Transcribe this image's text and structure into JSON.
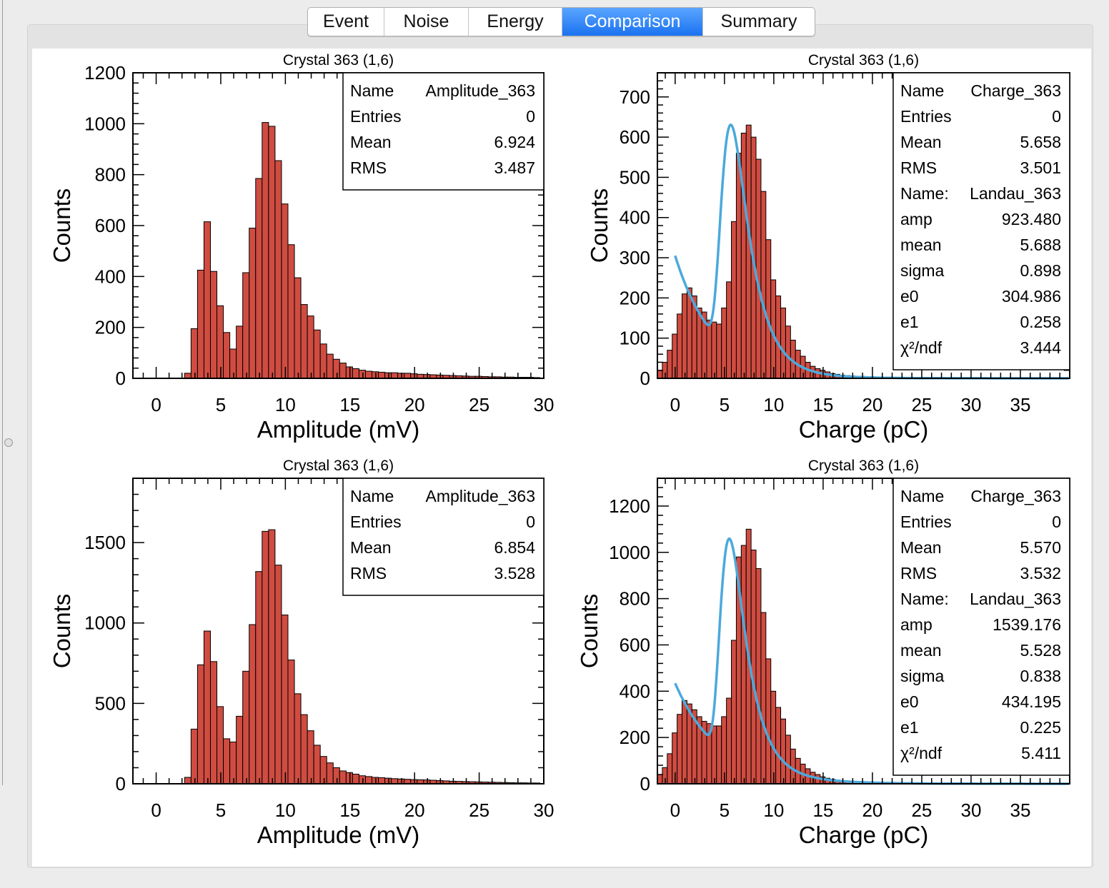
{
  "tabs": [
    {
      "label": "Event",
      "active": false
    },
    {
      "label": "Noise",
      "active": false
    },
    {
      "label": "Energy",
      "active": false
    },
    {
      "label": "Comparison",
      "active": true
    },
    {
      "label": "Summary",
      "active": false
    }
  ],
  "colors": {
    "fill": "#d04c41",
    "edge": "#000000",
    "fit": "#4ba9dc",
    "active_tab": "#1b72f0"
  },
  "chart_data": [
    {
      "type": "bar",
      "title": "Crystal 363 (1,6)",
      "xlabel": "Amplitude (mV)",
      "ylabel": "Counts",
      "xlim": [
        -1.8,
        30
      ],
      "ylim": [
        0,
        1200
      ],
      "x_ticks": [
        "0",
        "5",
        "10",
        "15",
        "20",
        "25",
        "30"
      ],
      "y_ticks": [
        "0",
        "200",
        "400",
        "600",
        "800",
        "1000",
        "1200"
      ],
      "x_tick_values": [
        0,
        5,
        10,
        15,
        20,
        25,
        30
      ],
      "y_tick_values": [
        0,
        200,
        400,
        600,
        800,
        1000,
        1200
      ],
      "bin_start": -1.8,
      "bin_width": 0.5,
      "values": [
        0,
        0,
        0,
        0,
        0,
        0,
        0,
        0,
        20,
        195,
        425,
        615,
        420,
        285,
        180,
        115,
        205,
        415,
        590,
        785,
        1005,
        990,
        855,
        685,
        525,
        395,
        290,
        245,
        190,
        135,
        95,
        75,
        60,
        45,
        38,
        32,
        28,
        26,
        24,
        22,
        22,
        20,
        20,
        18,
        16,
        15,
        14,
        13,
        12,
        11,
        10,
        9,
        8,
        8,
        7,
        6,
        6,
        5,
        5,
        4,
        4,
        4,
        3
      ],
      "stats": [
        {
          "label": "Name",
          "value": "Amplitude_363"
        },
        {
          "label": "Entries",
          "value": "0"
        },
        {
          "label": "Mean",
          "value": "6.924"
        },
        {
          "label": "RMS",
          "value": "3.487"
        }
      ]
    },
    {
      "type": "bar",
      "title": "Crystal 363 (1,6)",
      "xlabel": "Charge (pC)",
      "ylabel": "Counts",
      "xlim": [
        -1.8,
        40
      ],
      "ylim": [
        0,
        760
      ],
      "x_ticks": [
        "0",
        "5",
        "10",
        "15",
        "20",
        "25",
        "30",
        "35"
      ],
      "y_ticks": [
        "0",
        "100",
        "200",
        "300",
        "400",
        "500",
        "600",
        "700"
      ],
      "x_tick_values": [
        0,
        5,
        10,
        15,
        20,
        25,
        30,
        35
      ],
      "y_tick_values": [
        0,
        100,
        200,
        300,
        400,
        500,
        600,
        700
      ],
      "bin_start": -1.8,
      "bin_width": 0.5,
      "values": [
        20,
        40,
        70,
        110,
        160,
        210,
        225,
        205,
        175,
        165,
        145,
        140,
        135,
        175,
        240,
        390,
        560,
        610,
        630,
        600,
        545,
        465,
        345,
        245,
        205,
        175,
        130,
        95,
        70,
        55,
        40,
        30,
        24,
        20,
        16,
        12,
        10,
        8,
        7,
        6,
        5,
        5,
        4,
        4,
        3,
        3,
        3,
        2,
        2,
        2,
        2,
        2,
        2,
        1,
        1,
        1,
        1,
        1,
        1,
        1,
        1,
        1,
        1,
        1,
        1,
        1,
        1,
        1,
        1,
        1,
        1,
        1,
        1,
        1,
        1,
        1,
        1,
        1,
        1,
        1,
        1,
        1,
        1
      ],
      "fit": {
        "amp": 923.48,
        "mean": 5.688,
        "sigma": 0.898,
        "e0": 304.986,
        "e1": 0.258,
        "x_from": 0,
        "x_to": 40
      },
      "stats": [
        {
          "label": "Name",
          "value": "Charge_363"
        },
        {
          "label": "Entries",
          "value": "0"
        },
        {
          "label": "Mean",
          "value": "5.658"
        },
        {
          "label": "RMS",
          "value": "3.501"
        },
        {
          "label": "Name:",
          "value": "Landau_363"
        },
        {
          "label": "amp",
          "value": "923.480"
        },
        {
          "label": "mean",
          "value": "5.688"
        },
        {
          "label": "sigma",
          "value": "0.898"
        },
        {
          "label": "e0",
          "value": "304.986"
        },
        {
          "label": "e1",
          "value": "0.258"
        },
        {
          "label": "χ²/ndf",
          "value": "3.444"
        }
      ]
    },
    {
      "type": "bar",
      "title": "Crystal 363 (1,6)",
      "xlabel": "Amplitude (mV)",
      "ylabel": "Counts",
      "xlim": [
        -1.8,
        30
      ],
      "ylim": [
        0,
        1900
      ],
      "x_ticks": [
        "0",
        "5",
        "10",
        "15",
        "20",
        "25",
        "30"
      ],
      "y_ticks": [
        "0",
        "500",
        "1000",
        "1500"
      ],
      "x_tick_values": [
        0,
        5,
        10,
        15,
        20,
        25,
        30
      ],
      "y_tick_values": [
        0,
        500,
        1000,
        1500
      ],
      "bin_start": -1.8,
      "bin_width": 0.5,
      "values": [
        0,
        0,
        0,
        0,
        0,
        0,
        0,
        0,
        40,
        340,
        740,
        950,
        760,
        480,
        280,
        260,
        420,
        700,
        990,
        1320,
        1570,
        1580,
        1360,
        1050,
        770,
        560,
        430,
        330,
        240,
        170,
        130,
        100,
        80,
        70,
        60,
        50,
        45,
        40,
        38,
        35,
        32,
        30,
        28,
        26,
        25,
        24,
        22,
        20,
        18,
        16,
        15,
        14,
        13,
        12,
        11,
        10,
        9,
        8,
        7,
        6,
        6,
        5,
        5
      ],
      "stats": [
        {
          "label": "Name",
          "value": "Amplitude_363"
        },
        {
          "label": "Entries",
          "value": "0"
        },
        {
          "label": "Mean",
          "value": "6.854"
        },
        {
          "label": "RMS",
          "value": "3.528"
        }
      ]
    },
    {
      "type": "bar",
      "title": "Crystal 363 (1,6)",
      "xlabel": "Charge (pC)",
      "ylabel": "Counts",
      "xlim": [
        -1.8,
        40
      ],
      "ylim": [
        0,
        1320
      ],
      "x_ticks": [
        "0",
        "5",
        "10",
        "15",
        "20",
        "25",
        "30",
        "35"
      ],
      "y_ticks": [
        "0",
        "200",
        "400",
        "600",
        "800",
        "1000",
        "1200"
      ],
      "x_tick_values": [
        0,
        5,
        10,
        15,
        20,
        25,
        30,
        35
      ],
      "y_tick_values": [
        0,
        200,
        400,
        600,
        800,
        1000,
        1200
      ],
      "bin_start": -1.8,
      "bin_width": 0.5,
      "values": [
        40,
        70,
        130,
        220,
        300,
        360,
        345,
        320,
        290,
        270,
        260,
        250,
        250,
        290,
        370,
        620,
        980,
        1030,
        1100,
        1010,
        930,
        740,
        540,
        400,
        330,
        280,
        210,
        150,
        110,
        85,
        65,
        50,
        40,
        30,
        24,
        20,
        16,
        12,
        10,
        8,
        7,
        6,
        5,
        4,
        4,
        3,
        3,
        3,
        2,
        2,
        2,
        2,
        2,
        1,
        1,
        1,
        1,
        1,
        1,
        1,
        1,
        1,
        1,
        1,
        1,
        1,
        1,
        1,
        1,
        1,
        1,
        1,
        1,
        1,
        1,
        1,
        1,
        1,
        1,
        1,
        1,
        1,
        1
      ],
      "fit": {
        "amp": 1539.176,
        "mean": 5.528,
        "sigma": 0.838,
        "e0": 434.195,
        "e1": 0.225,
        "x_from": 0,
        "x_to": 40
      },
      "stats": [
        {
          "label": "Name",
          "value": "Charge_363"
        },
        {
          "label": "Entries",
          "value": "0"
        },
        {
          "label": "Mean",
          "value": "5.570"
        },
        {
          "label": "RMS",
          "value": "3.532"
        },
        {
          "label": "Name:",
          "value": "Landau_363"
        },
        {
          "label": "amp",
          "value": "1539.176"
        },
        {
          "label": "mean",
          "value": "5.528"
        },
        {
          "label": "sigma",
          "value": "0.838"
        },
        {
          "label": "e0",
          "value": "434.195"
        },
        {
          "label": "e1",
          "value": "0.225"
        },
        {
          "label": "χ²/ndf",
          "value": "5.411"
        }
      ]
    }
  ]
}
